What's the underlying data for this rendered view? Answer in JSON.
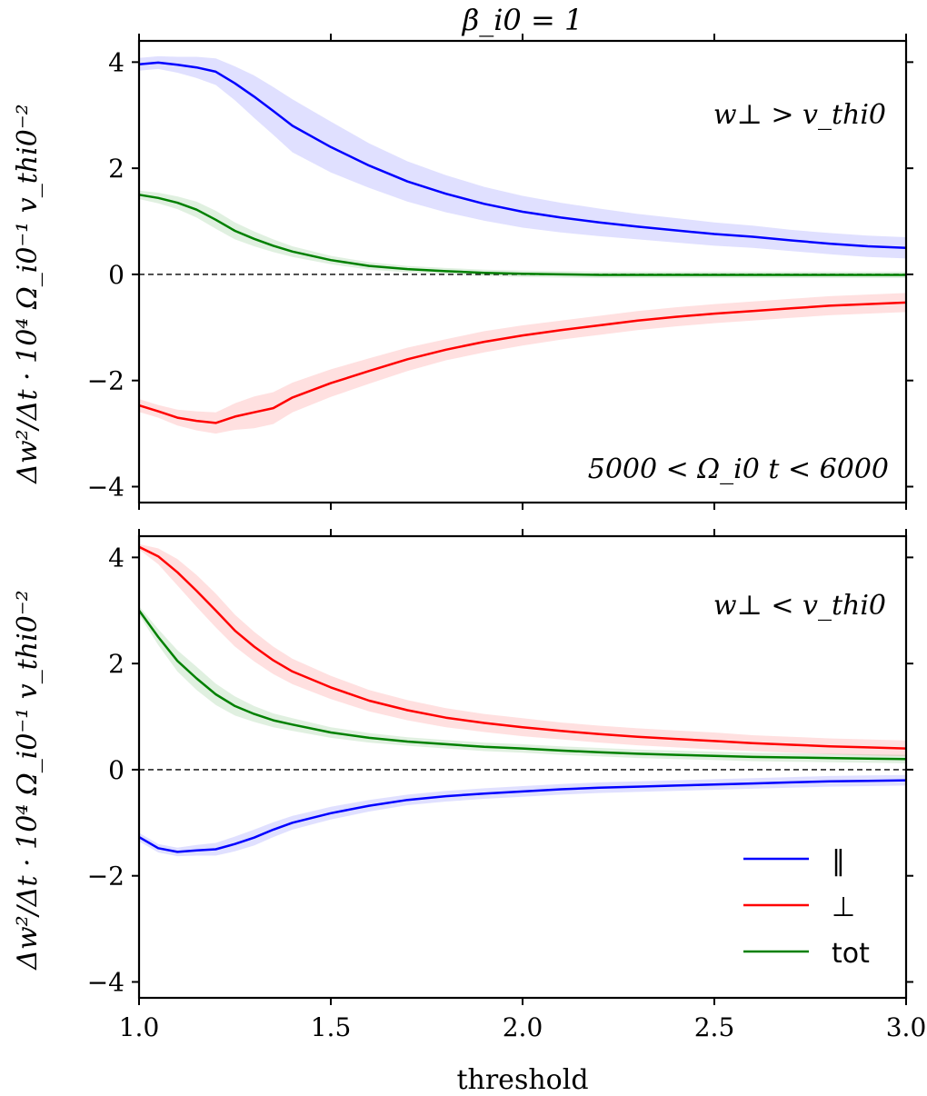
{
  "figure": {
    "title": "β_i0 = 1",
    "xlabel": "threshold",
    "ylabel": "Δw²/Δt · 10⁴ Ω_i0⁻¹ v_thi0⁻²"
  },
  "legend": {
    "position": "lower-right",
    "entries": [
      {
        "label": "‖",
        "color": "#0000ff"
      },
      {
        "label": "⊥",
        "color": "#ff0000"
      },
      {
        "label": "tot",
        "color": "#008000"
      }
    ]
  },
  "chart_data": [
    {
      "type": "line",
      "panel": "top",
      "annotation": "w⊥ > v_thi0",
      "annotation2": "5000 < Ω_i0 t < 6000",
      "xlim": [
        1.0,
        3.0
      ],
      "ylim": [
        -4.3,
        4.4
      ],
      "xticks": [
        "1.0",
        "1.5",
        "2.0",
        "2.5",
        "3.0"
      ],
      "yticks": [
        "4",
        "2",
        "0",
        "−2",
        "−4"
      ],
      "reference_line": 0,
      "x": [
        1.0,
        1.05,
        1.1,
        1.15,
        1.2,
        1.25,
        1.3,
        1.35,
        1.4,
        1.5,
        1.6,
        1.7,
        1.8,
        1.9,
        2.0,
        2.1,
        2.2,
        2.3,
        2.4,
        2.5,
        2.6,
        2.7,
        2.8,
        2.9,
        3.0
      ],
      "series": [
        {
          "name": "parallel",
          "color": "#0000ff",
          "values": [
            3.96,
            3.99,
            3.95,
            3.9,
            3.82,
            3.6,
            3.35,
            3.08,
            2.8,
            2.4,
            2.05,
            1.75,
            1.52,
            1.33,
            1.18,
            1.07,
            0.98,
            0.9,
            0.83,
            0.76,
            0.71,
            0.64,
            0.58,
            0.53,
            0.5
          ],
          "band": [
            0.12,
            0.12,
            0.15,
            0.2,
            0.25,
            0.32,
            0.4,
            0.45,
            0.5,
            0.48,
            0.42,
            0.38,
            0.35,
            0.32,
            0.3,
            0.28,
            0.26,
            0.24,
            0.23,
            0.22,
            0.21,
            0.2,
            0.2,
            0.2,
            0.2
          ]
        },
        {
          "name": "perpendicular",
          "color": "#ff0000",
          "values": [
            -2.47,
            -2.58,
            -2.7,
            -2.76,
            -2.8,
            -2.68,
            -2.6,
            -2.52,
            -2.32,
            -2.05,
            -1.82,
            -1.6,
            -1.42,
            -1.27,
            -1.15,
            -1.05,
            -0.96,
            -0.87,
            -0.8,
            -0.74,
            -0.69,
            -0.64,
            -0.59,
            -0.56,
            -0.53
          ],
          "band": [
            0.12,
            0.12,
            0.15,
            0.18,
            0.2,
            0.25,
            0.3,
            0.3,
            0.28,
            0.26,
            0.24,
            0.22,
            0.2,
            0.2,
            0.19,
            0.18,
            0.18,
            0.18,
            0.18,
            0.18,
            0.18,
            0.18,
            0.18,
            0.18,
            0.18
          ]
        },
        {
          "name": "total",
          "color": "#008000",
          "values": [
            1.5,
            1.44,
            1.35,
            1.22,
            1.03,
            0.82,
            0.67,
            0.54,
            0.43,
            0.27,
            0.16,
            0.1,
            0.06,
            0.03,
            0.01,
            0.0,
            -0.01,
            -0.01,
            -0.01,
            -0.01,
            -0.01,
            -0.01,
            -0.01,
            -0.01,
            -0.01
          ],
          "band": [
            0.08,
            0.1,
            0.12,
            0.15,
            0.17,
            0.16,
            0.14,
            0.12,
            0.1,
            0.08,
            0.07,
            0.06,
            0.06,
            0.06,
            0.06,
            0.06,
            0.06,
            0.06,
            0.06,
            0.06,
            0.06,
            0.06,
            0.06,
            0.06,
            0.06
          ]
        }
      ]
    },
    {
      "type": "line",
      "panel": "bottom",
      "annotation": "w⊥ < v_thi0",
      "xlim": [
        1.0,
        3.0
      ],
      "ylim": [
        -4.3,
        4.4
      ],
      "xticks": [
        "1.0",
        "1.5",
        "2.0",
        "2.5",
        "3.0"
      ],
      "yticks": [
        "4",
        "2",
        "0",
        "−2",
        "−4"
      ],
      "reference_line": 0,
      "x": [
        1.0,
        1.05,
        1.1,
        1.15,
        1.2,
        1.25,
        1.3,
        1.35,
        1.4,
        1.5,
        1.6,
        1.7,
        1.8,
        1.9,
        2.0,
        2.1,
        2.2,
        2.3,
        2.4,
        2.5,
        2.6,
        2.7,
        2.8,
        2.9,
        3.0
      ],
      "series": [
        {
          "name": "parallel",
          "color": "#0000ff",
          "values": [
            -1.27,
            -1.48,
            -1.55,
            -1.52,
            -1.5,
            -1.4,
            -1.28,
            -1.13,
            -1.0,
            -0.82,
            -0.68,
            -0.57,
            -0.5,
            -0.45,
            -0.41,
            -0.37,
            -0.34,
            -0.32,
            -0.3,
            -0.28,
            -0.26,
            -0.24,
            -0.22,
            -0.21,
            -0.2
          ],
          "band": [
            0.08,
            0.08,
            0.08,
            0.1,
            0.12,
            0.14,
            0.15,
            0.14,
            0.13,
            0.12,
            0.11,
            0.1,
            0.1,
            0.1,
            0.1,
            0.1,
            0.1,
            0.1,
            0.1,
            0.1,
            0.1,
            0.1,
            0.1,
            0.1,
            0.1
          ]
        },
        {
          "name": "perpendicular",
          "color": "#ff0000",
          "values": [
            4.2,
            4.02,
            3.72,
            3.37,
            3.0,
            2.62,
            2.32,
            2.06,
            1.85,
            1.55,
            1.3,
            1.12,
            0.98,
            0.88,
            0.8,
            0.73,
            0.67,
            0.62,
            0.58,
            0.54,
            0.5,
            0.47,
            0.44,
            0.42,
            0.4
          ],
          "band": [
            0.05,
            0.15,
            0.25,
            0.3,
            0.32,
            0.3,
            0.28,
            0.26,
            0.24,
            0.22,
            0.2,
            0.19,
            0.18,
            0.17,
            0.17,
            0.16,
            0.16,
            0.16,
            0.16,
            0.16,
            0.15,
            0.15,
            0.15,
            0.15,
            0.15
          ]
        },
        {
          "name": "total",
          "color": "#008000",
          "values": [
            3.0,
            2.5,
            2.05,
            1.72,
            1.42,
            1.2,
            1.05,
            0.93,
            0.85,
            0.7,
            0.6,
            0.53,
            0.48,
            0.43,
            0.4,
            0.36,
            0.33,
            0.3,
            0.28,
            0.26,
            0.24,
            0.23,
            0.22,
            0.21,
            0.2
          ],
          "band": [
            0.08,
            0.15,
            0.2,
            0.22,
            0.2,
            0.18,
            0.15,
            0.13,
            0.12,
            0.1,
            0.09,
            0.08,
            0.08,
            0.08,
            0.08,
            0.08,
            0.08,
            0.08,
            0.08,
            0.08,
            0.08,
            0.08,
            0.08,
            0.08,
            0.08
          ]
        }
      ]
    }
  ]
}
